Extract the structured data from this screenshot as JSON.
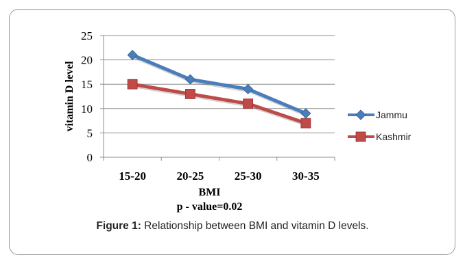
{
  "chart_data": {
    "type": "line",
    "categories": [
      "15-20",
      "20-25",
      "25-30",
      "30-35"
    ],
    "series": [
      {
        "name": "Jammu",
        "values": [
          21,
          16,
          14,
          9
        ],
        "color": "#4a7ebb",
        "marker": "diamond"
      },
      {
        "name": "Kashmir",
        "values": [
          15,
          13,
          11,
          7
        ],
        "color": "#be4b48",
        "marker": "square"
      }
    ],
    "xlabel": "BMI",
    "xlabel_note": "p - value=0.02",
    "ylabel": "vitamin D level",
    "ylim": [
      0,
      25
    ],
    "yticks": [
      0,
      5,
      10,
      15,
      20,
      25
    ],
    "grid": true,
    "legend_position": "right"
  },
  "caption": {
    "label": "Figure 1:",
    "text": " Relationship between BMI and vitamin D levels."
  }
}
